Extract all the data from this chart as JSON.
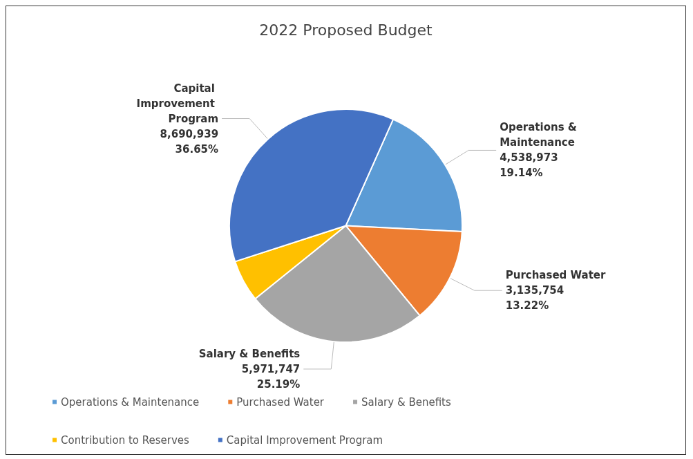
{
  "chart_data": {
    "type": "pie",
    "title": "2022 Proposed Budget",
    "categories": [
      "Operations & Maintenance",
      "Purchased Water",
      "Salary & Benefits",
      "Contribution to Reserves",
      "Capital Improvement Program"
    ],
    "values": [
      4538973,
      3135754,
      5971747,
      1376000,
      8690939
    ],
    "colors": [
      "#5b9bd5",
      "#ed7d31",
      "#a5a5a5",
      "#ffc000",
      "#4472c4"
    ],
    "value_labels": [
      "4,538,973\n19.14%",
      "3,135,754\n13.22%",
      "5,971,747\n25.19%",
      null,
      "8,690,939\n36.65%"
    ],
    "legend": "bottom"
  }
}
